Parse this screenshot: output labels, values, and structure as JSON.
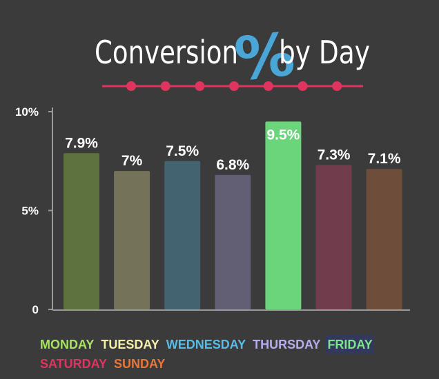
{
  "title": {
    "before": "Conversion",
    "symbol": "%",
    "after": "by Day",
    "text_color": "#ffffff",
    "symbol_color": "#4aa6d6",
    "rule_color": "#e0345f",
    "dot_count": 7
  },
  "chart_data": {
    "type": "bar",
    "categories": [
      "MONDAY",
      "TUESDAY",
      "WEDNESDAY",
      "THURSDAY",
      "FRIDAY",
      "SATURDAY",
      "SUNDAY"
    ],
    "values": [
      7.9,
      7.0,
      7.5,
      6.8,
      9.5,
      7.3,
      7.1
    ],
    "value_labels": [
      "7.9%",
      "7%",
      "7.5%",
      "6.8%",
      "9.5%",
      "7.3%",
      "7.1%"
    ],
    "ylim": [
      0,
      10
    ],
    "yticks": [
      {
        "value": 0,
        "label": "0"
      },
      {
        "value": 5,
        "label": "5%"
      },
      {
        "value": 10,
        "label": "10%"
      }
    ],
    "xlabel": "",
    "ylabel": "",
    "grid": false,
    "legend_position": "bottom",
    "bar_colors": [
      "#5e723e",
      "#74735a",
      "#436370",
      "#625e73",
      "#6ad57a",
      "#713c4b",
      "#6e4e3a"
    ],
    "highlighted_category": "FRIDAY"
  },
  "legend": {
    "items": [
      {
        "label": "MONDAY",
        "color": "#a6e35f"
      },
      {
        "label": "TUESDAY",
        "color": "#f3f0a8"
      },
      {
        "label": "WEDNESDAY",
        "color": "#55bde8"
      },
      {
        "label": "THURSDAY",
        "color": "#b8acee"
      },
      {
        "label": "FRIDAY",
        "color": "#7ce48b"
      },
      {
        "label": "SATURDAY",
        "color": "#e0345f"
      },
      {
        "label": "SUNDAY",
        "color": "#e8773a"
      }
    ]
  }
}
